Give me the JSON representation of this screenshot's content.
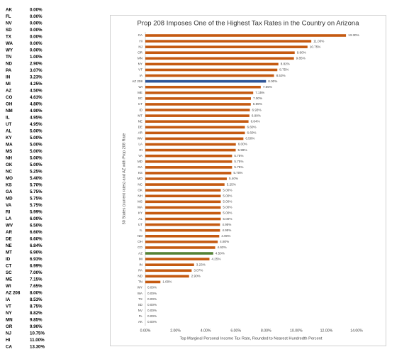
{
  "table": {
    "rows": [
      [
        "AK",
        "0.00%"
      ],
      [
        "FL",
        "0.00%"
      ],
      [
        "NV",
        "0.00%"
      ],
      [
        "SD",
        "0.00%"
      ],
      [
        "TX",
        "0.00%"
      ],
      [
        "WA",
        "0.00%"
      ],
      [
        "WY",
        "0.00%"
      ],
      [
        "TN",
        "1.00%"
      ],
      [
        "ND",
        "2.90%"
      ],
      [
        "PA",
        "3.07%"
      ],
      [
        "IN",
        "3.23%"
      ],
      [
        "MI",
        "4.25%"
      ],
      [
        "AZ",
        "4.50%"
      ],
      [
        "CO",
        "4.63%"
      ],
      [
        "OH",
        "4.80%"
      ],
      [
        "NM",
        "4.90%"
      ],
      [
        "IL",
        "4.95%"
      ],
      [
        "UT",
        "4.95%"
      ],
      [
        "AL",
        "5.00%"
      ],
      [
        "KY",
        "5.00%"
      ],
      [
        "MA",
        "5.00%"
      ],
      [
        "MS",
        "5.00%"
      ],
      [
        "NH",
        "5.00%"
      ],
      [
        "OK",
        "5.00%"
      ],
      [
        "NC",
        "5.25%"
      ],
      [
        "MO",
        "5.40%"
      ],
      [
        "KS",
        "5.70%"
      ],
      [
        "GA",
        "5.75%"
      ],
      [
        "MD",
        "5.75%"
      ],
      [
        "VA",
        "5.75%"
      ],
      [
        "RI",
        "5.99%"
      ],
      [
        "LA",
        "6.00%"
      ],
      [
        "WV",
        "6.50%"
      ],
      [
        "AR",
        "6.60%"
      ],
      [
        "DE",
        "6.60%"
      ],
      [
        "NE",
        "6.84%"
      ],
      [
        "MT",
        "6.90%"
      ],
      [
        "ID",
        "6.93%"
      ],
      [
        "CT",
        "6.99%"
      ],
      [
        "SC",
        "7.00%"
      ],
      [
        "ME",
        "7.15%"
      ],
      [
        "WI",
        "7.65%"
      ],
      [
        "AZ 208",
        "8.00%"
      ],
      [
        "IA",
        "8.53%"
      ],
      [
        "VT",
        "8.75%"
      ],
      [
        "NY",
        "8.82%"
      ],
      [
        "MN",
        "9.85%"
      ],
      [
        "OR",
        "9.90%"
      ],
      [
        "NJ",
        "10.75%"
      ],
      [
        "HI",
        "11.00%"
      ],
      [
        "CA",
        "13.30%"
      ]
    ]
  },
  "chart_data": {
    "type": "barh",
    "title": "Prop 208 Imposes One of the Highest Tax Rates in the Country on Arizona",
    "x_label": "Top Marginal Personal Income Tax Rate, Rounded to Nearest Hundredth Percent",
    "y_label": "50 States (current rates) and AZ with Prop 208 Rate",
    "categories": [
      "CA",
      "HI",
      "NJ",
      "OR",
      "MN",
      "NY",
      "VT",
      "IA",
      "AZ 208",
      "WI",
      "ME",
      "SC",
      "CT",
      "ID",
      "MT",
      "NE",
      "DE",
      "AR",
      "WV",
      "LA",
      "RI",
      "VA",
      "MD",
      "GA",
      "KS",
      "MO",
      "NC",
      "OK",
      "NH",
      "MS",
      "MA",
      "KY",
      "AL",
      "UT",
      "IL",
      "NM",
      "OH",
      "CO",
      "AZ",
      "MI",
      "IN",
      "PA",
      "ND",
      "TN",
      "WY",
      "WA",
      "TX",
      "SD",
      "NV",
      "FL",
      "AK"
    ],
    "values": [
      13.3,
      11,
      10.75,
      9.9,
      9.85,
      8.82,
      8.75,
      8.53,
      8,
      7.65,
      7.15,
      7,
      6.99,
      6.93,
      6.9,
      6.84,
      6.6,
      6.6,
      6.5,
      6,
      5.99,
      5.75,
      5.75,
      5.75,
      5.7,
      5.4,
      5.25,
      5,
      5,
      5,
      5,
      5,
      5,
      4.95,
      4.95,
      4.9,
      4.8,
      4.63,
      4.5,
      4.25,
      3.23,
      3.07,
      2.9,
      1,
      0,
      0,
      0,
      0,
      0,
      0,
      0
    ],
    "value_labels": [
      "13.30%",
      "11.00%",
      "10.75%",
      "9.90%",
      "9.85%",
      "8.82%",
      "8.75%",
      "8.53%",
      "8.00%",
      "7.65%",
      "7.15%",
      "7.00%",
      "6.99%",
      "6.93%",
      "6.90%",
      "6.84%",
      "6.60%",
      "6.60%",
      "6.50%",
      "6.00%",
      "5.99%",
      "5.75%",
      "5.75%",
      "5.75%",
      "5.70%",
      "5.40%",
      "5.25%",
      "5.00%",
      "5.00%",
      "5.00%",
      "5.00%",
      "5.00%",
      "5.00%",
      "4.95%",
      "4.95%",
      "4.90%",
      "4.80%",
      "4.63%",
      "4.50%",
      "4.25%",
      "3.23%",
      "3.07%",
      "2.90%",
      "1.00%",
      "0.00%",
      "0.00%",
      "0.00%",
      "0.00%",
      "0.00%",
      "0.00%",
      "0.00%"
    ],
    "bar_colors": [
      "#c55a11",
      "#c55a11",
      "#c55a11",
      "#c55a11",
      "#c55a11",
      "#c55a11",
      "#c55a11",
      "#c55a11",
      "#2f5597",
      "#c55a11",
      "#c55a11",
      "#c55a11",
      "#c55a11",
      "#c55a11",
      "#c55a11",
      "#c55a11",
      "#c55a11",
      "#c55a11",
      "#c55a11",
      "#c55a11",
      "#c55a11",
      "#c55a11",
      "#c55a11",
      "#c55a11",
      "#c55a11",
      "#c55a11",
      "#c55a11",
      "#c55a11",
      "#c55a11",
      "#c55a11",
      "#c55a11",
      "#c55a11",
      "#c55a11",
      "#c55a11",
      "#c55a11",
      "#c55a11",
      "#c55a11",
      "#c55a11",
      "#548235",
      "#c55a11",
      "#c55a11",
      "#c55a11",
      "#c55a11",
      "#c55a11",
      "#c55a11",
      "#c55a11",
      "#c55a11",
      "#c55a11",
      "#c55a11",
      "#c55a11",
      "#c55a11"
    ],
    "xlim": [
      0,
      14
    ],
    "xticks": [
      {
        "value": 0,
        "label": "0.00%"
      },
      {
        "value": 2,
        "label": "2.00%"
      },
      {
        "value": 4,
        "label": "4.00%"
      },
      {
        "value": 6,
        "label": "6.00%"
      },
      {
        "value": 8,
        "label": "8.00%"
      },
      {
        "value": 10,
        "label": "10.00%"
      },
      {
        "value": 12,
        "label": "12.00%"
      },
      {
        "value": 14,
        "label": "14.00%"
      }
    ],
    "grid": false
  }
}
